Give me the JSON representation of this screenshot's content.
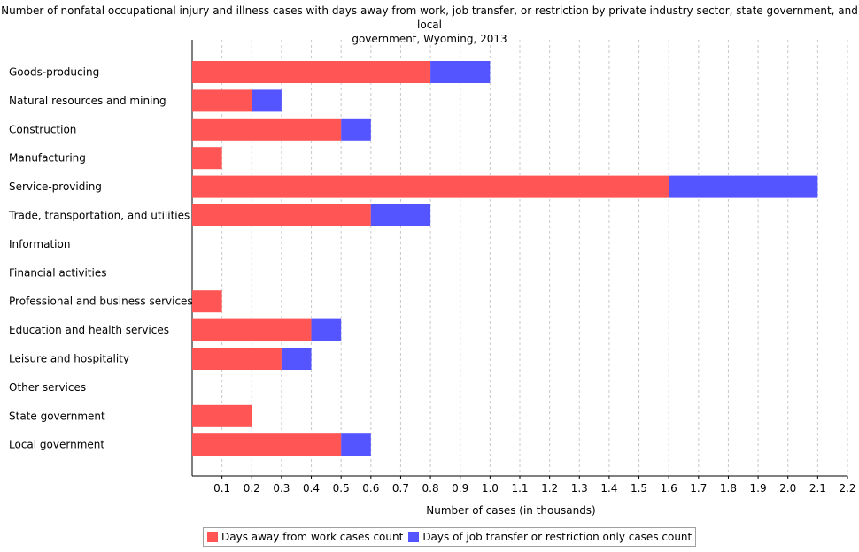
{
  "chart_data": {
    "type": "bar",
    "orientation": "horizontal",
    "stacked": true,
    "title_lines": [
      "Number of nonfatal occupational injury and illness cases with days away from work, job transfer, or restriction by private industry sector, state government, and local",
      "government, Wyoming, 2013"
    ],
    "xlabel": "Number of cases (in thousands)",
    "ylabel": "",
    "xlim": [
      0,
      2.2
    ],
    "x_ticks": [
      "0.1",
      "0.2",
      "0.3",
      "0.4",
      "0.5",
      "0.6",
      "0.7",
      "0.8",
      "0.9",
      "1.0",
      "1.1",
      "1.2",
      "1.3",
      "1.4",
      "1.5",
      "1.6",
      "1.7",
      "1.8",
      "1.9",
      "2.0",
      "2.1",
      "2.2"
    ],
    "grid": true,
    "legend_position": "bottom",
    "categories": [
      "Goods-producing",
      "Natural resources and mining",
      "Construction",
      "Manufacturing",
      "Service-providing",
      "Trade, transportation, and utilities",
      "Information",
      "Financial activities",
      "Professional and business services",
      "Education and health services",
      "Leisure and hospitality",
      "Other services",
      "State government",
      "Local government"
    ],
    "series": [
      {
        "name": "Days away from work cases count",
        "color": "#ff5555",
        "values": [
          0.8,
          0.2,
          0.5,
          0.1,
          1.6,
          0.6,
          0,
          0,
          0.1,
          0.4,
          0.3,
          0,
          0.2,
          0.5
        ]
      },
      {
        "name": "Days of job transfer or restriction only cases count",
        "color": "#5555ff",
        "values": [
          0.2,
          0.1,
          0.1,
          0,
          0.5,
          0.2,
          0,
          0,
          0,
          0.1,
          0.1,
          0,
          0,
          0.1
        ]
      }
    ]
  }
}
